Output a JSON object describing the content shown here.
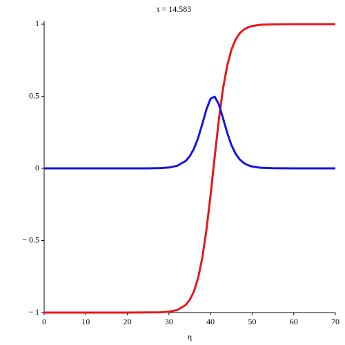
{
  "chart_data": {
    "type": "line",
    "title": "τ = 14.583",
    "x_label": "η",
    "x": [
      0,
      10,
      20,
      25,
      28,
      30,
      32,
      34,
      35,
      36,
      37,
      38,
      39,
      40,
      41,
      42,
      43,
      44,
      45,
      46,
      47,
      48,
      49,
      50,
      52,
      55,
      60,
      70
    ],
    "series": [
      {
        "color": "#e8161a",
        "values": [
          -1,
          -1,
          -1,
          -0.999,
          -0.998,
          -0.994,
          -0.982,
          -0.948,
          -0.912,
          -0.854,
          -0.762,
          -0.623,
          -0.429,
          -0.187,
          0.081,
          0.337,
          0.553,
          0.712,
          0.821,
          0.892,
          0.936,
          0.962,
          0.978,
          0.987,
          0.996,
          0.999,
          1,
          1
        ]
      },
      {
        "color": "#1414e0",
        "values": [
          0,
          0,
          0,
          0,
          0.002,
          0.006,
          0.018,
          0.051,
          0.084,
          0.135,
          0.21,
          0.306,
          0.408,
          0.483,
          0.497,
          0.443,
          0.347,
          0.247,
          0.163,
          0.102,
          0.062,
          0.037,
          0.022,
          0.013,
          0.004,
          0.001,
          0,
          0
        ]
      }
    ],
    "xlim": [
      0,
      70
    ],
    "xticks": [
      0,
      10,
      20,
      30,
      40,
      50,
      60,
      70
    ],
    "ylim": [
      -1,
      1
    ],
    "yticks": [
      {
        "value": -1,
        "label": "− 1"
      },
      {
        "value": -0.5,
        "label": "− 0.5"
      },
      0,
      0.5,
      1
    ]
  }
}
